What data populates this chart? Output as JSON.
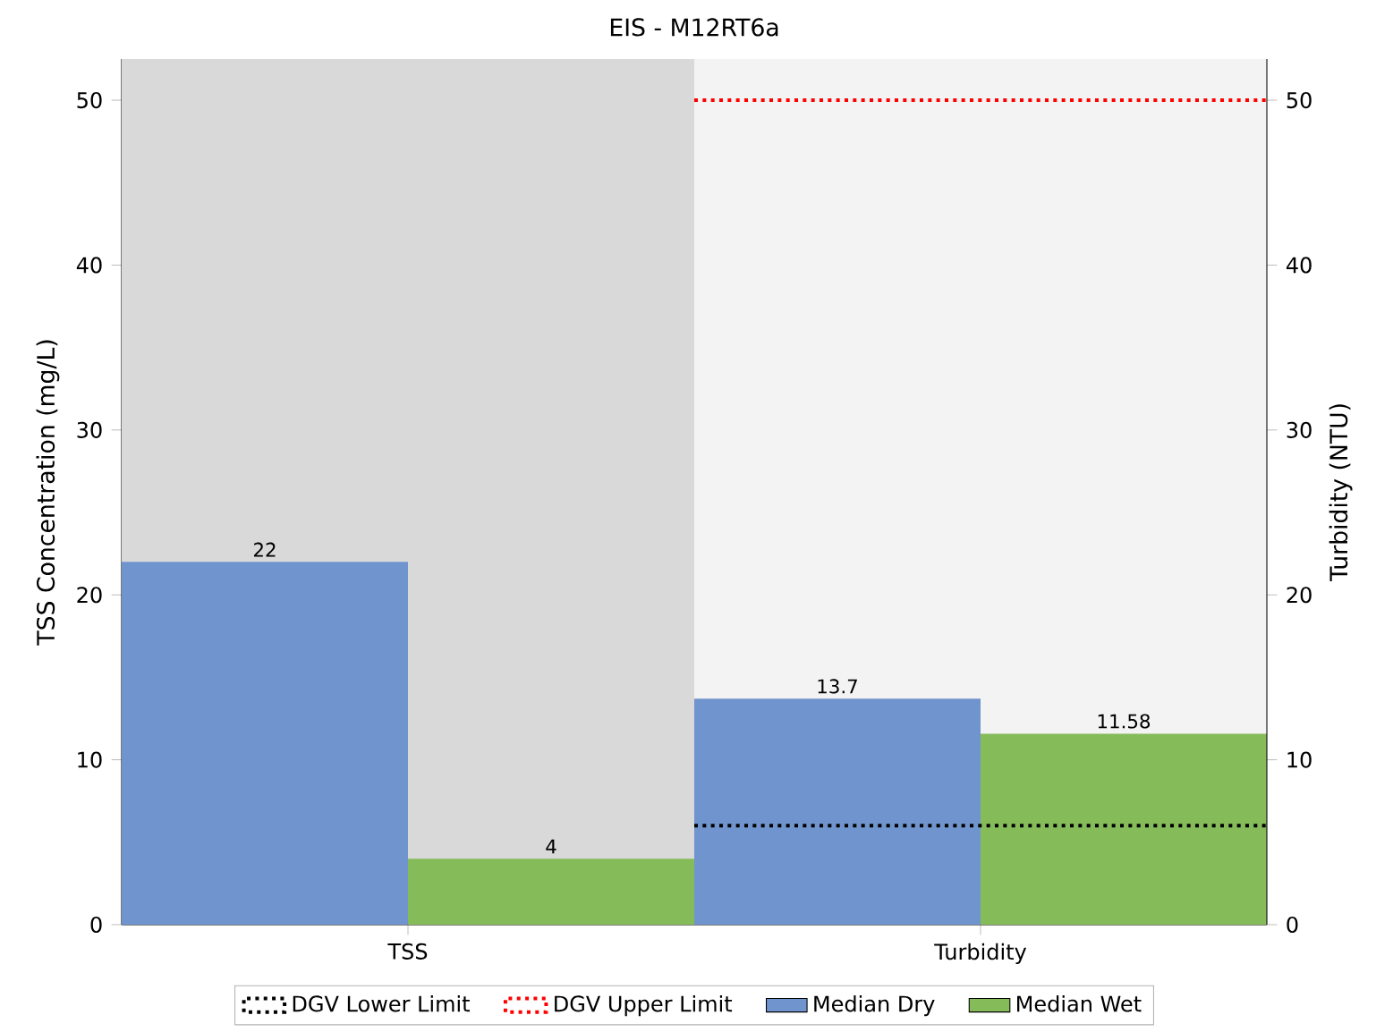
{
  "chart_data": {
    "type": "bar",
    "title": "EIS - M12RT6a",
    "ylabel": "TSS Concentration (mg/L)",
    "y2label": "Turbidity (NTU)",
    "categories": [
      "TSS",
      "Turbidity"
    ],
    "series": [
      {
        "name": "Median Dry",
        "color": "#7094cd",
        "values": [
          22,
          13.7
        ]
      },
      {
        "name": "Median Wet",
        "color": "#86bb5a",
        "values": [
          4,
          11.58
        ]
      }
    ],
    "ylim": [
      0,
      52.5
    ],
    "yticks": [
      0,
      10,
      20,
      30,
      40,
      50
    ],
    "y2lim": [
      0,
      52.5
    ],
    "y2ticks": [
      0,
      10,
      20,
      30,
      40,
      50
    ],
    "ref_lines": [
      {
        "axis": "y2",
        "value": 6,
        "label": "DGV Lower Limit",
        "color": "#000000",
        "line_style": "dotted"
      },
      {
        "axis": "y2",
        "value": 50,
        "label": "DGV Upper Limit",
        "color": "#ff0000",
        "line_style": "dotted"
      }
    ],
    "bands": [
      {
        "axis": "x",
        "from": "TSS",
        "to": "TSS",
        "color": "#d9d9d9"
      },
      {
        "axis": "x",
        "from": "Turbidity",
        "to": "Turbidity",
        "color": "#f3f3f3"
      }
    ],
    "data_labels": true,
    "legend": "bottom",
    "grid": false
  }
}
